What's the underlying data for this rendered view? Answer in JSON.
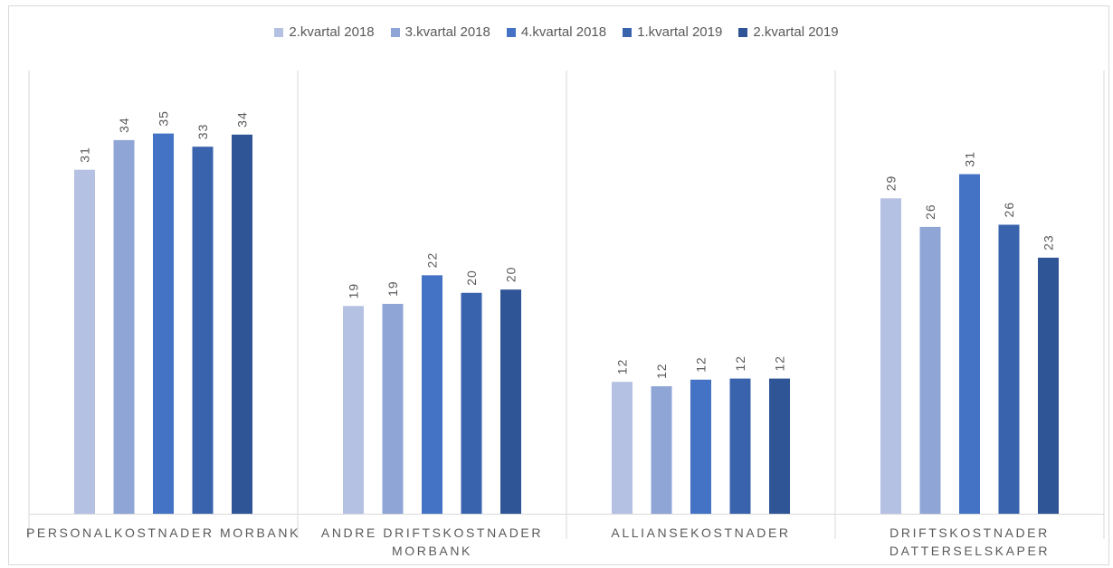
{
  "chart_data": {
    "type": "bar",
    "categories": [
      [
        "PERSONALKOSTNADER MORBANK"
      ],
      [
        "ANDRE DRIFTSKOSTNADER",
        "MORBANK"
      ],
      [
        "ALLIANSEKOSTNADER"
      ],
      [
        "DRIFTSKOSTNADER",
        "DATTERSELSKAPER"
      ]
    ],
    "series": [
      {
        "name": "2.kvartal 2018",
        "color": "#b4c1e3",
        "values": [
          31.3,
          18.9,
          12.0,
          28.7
        ]
      },
      {
        "name": "3.kvartal 2018",
        "color": "#8ea5d6",
        "values": [
          34.0,
          19.1,
          11.6,
          26.1
        ]
      },
      {
        "name": "4.kvartal 2018",
        "color": "#4472c4",
        "values": [
          34.6,
          21.7,
          12.2,
          30.9
        ]
      },
      {
        "name": "1.kvartal 2019",
        "color": "#3a63ad",
        "values": [
          33.4,
          20.1,
          12.3,
          26.3
        ]
      },
      {
        "name": "2.kvartal 2019",
        "color": "#2f5597",
        "values": [
          34.5,
          20.4,
          12.3,
          23.3
        ]
      }
    ],
    "data_labels": [
      [
        "31",
        "19",
        "12",
        "29"
      ],
      [
        "34",
        "19",
        "12",
        "26"
      ],
      [
        "35",
        "22",
        "12",
        "31"
      ],
      [
        "33",
        "20",
        "12",
        "26"
      ],
      [
        "34",
        "20",
        "12",
        "23"
      ]
    ],
    "ylim": [
      0,
      40
    ],
    "grid": false,
    "category_separators": true,
    "legend_position": "top",
    "label_color": "#595959",
    "axis_color": "#d9d9d9"
  }
}
